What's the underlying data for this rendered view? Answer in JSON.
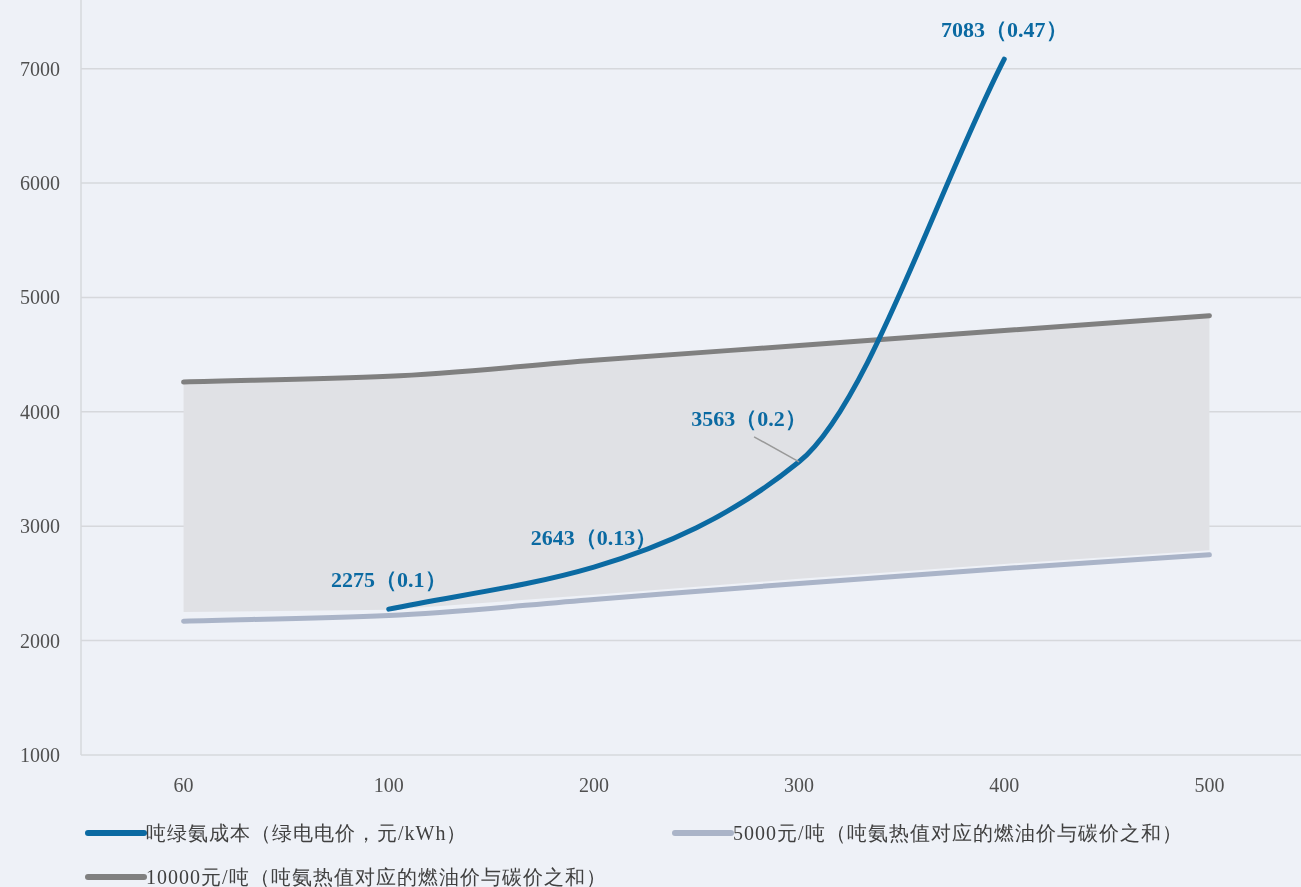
{
  "chart_data": {
    "type": "line",
    "categories": [
      "60",
      "100",
      "200",
      "300",
      "400",
      "500"
    ],
    "series": [
      {
        "name": "吨绿氨成本（绿电电价，元/kWh）",
        "color": "#0b6aa2",
        "values": [
          null,
          2275,
          2643,
          3563,
          7083,
          null
        ],
        "value_labels": [
          null,
          "2275（0.1）",
          "2643（0.13）",
          "3563（0.2）",
          "7083（0.47）",
          null
        ]
      },
      {
        "name": "5000元/吨（吨氨热值对应的燃油价与碳价之和）",
        "color": "#aab4c8",
        "values": [
          2170,
          2220,
          2360,
          2500,
          2630,
          2750
        ]
      },
      {
        "name": "10000元/吨（吨氨热值对应的燃油价与碳价之和）",
        "color": "#808080",
        "values": [
          4260,
          4310,
          4450,
          4580,
          4710,
          4840
        ],
        "lower": [
          2250,
          2270,
          2400,
          2540,
          2670,
          2790
        ],
        "upper": [
          4260,
          4310,
          4450,
          4580,
          4710,
          4840
        ]
      }
    ],
    "ylim": [
      1000,
      7600
    ],
    "yticks": [
      1000,
      2000,
      3000,
      4000,
      5000,
      6000,
      7000
    ],
    "grid": "y",
    "legend": "bottom",
    "marker": "none",
    "line_style": "solid"
  }
}
